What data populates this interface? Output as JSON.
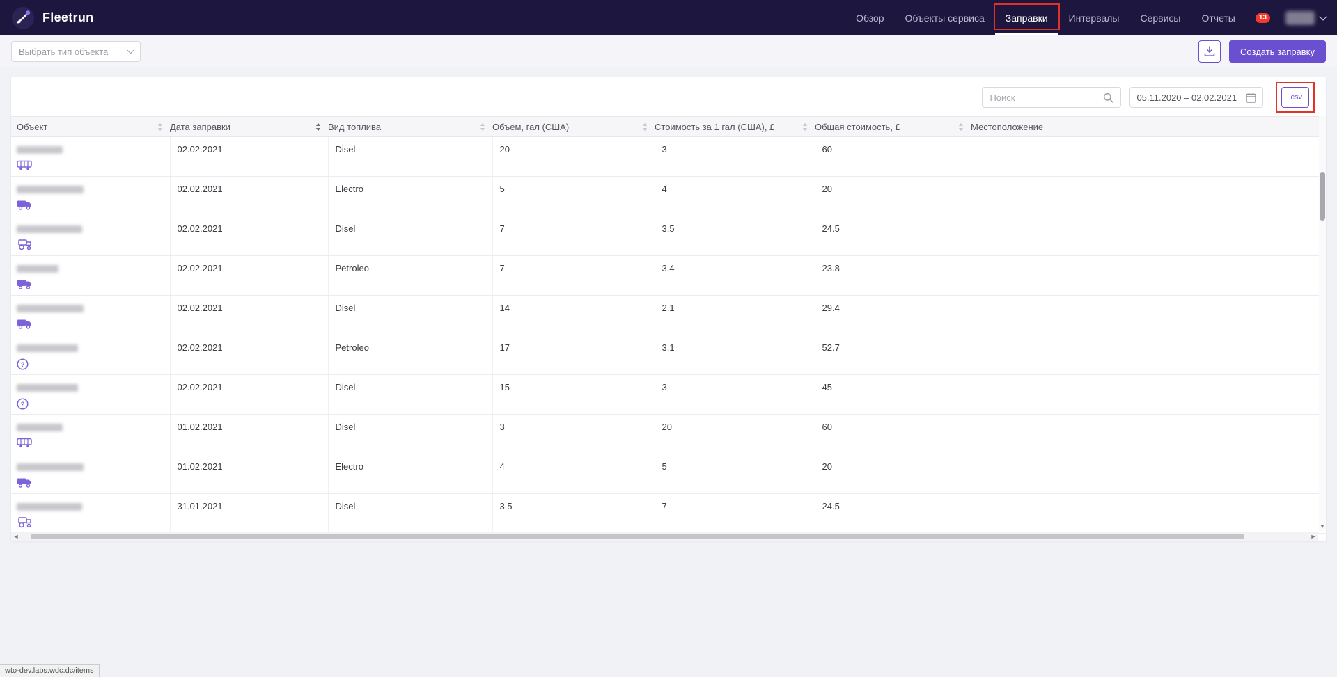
{
  "navbar": {
    "brand": "Fleetrun",
    "items": [
      {
        "label": "Обзор",
        "active": false,
        "annotated": false
      },
      {
        "label": "Объекты сервиса",
        "active": false,
        "annotated": false
      },
      {
        "label": "Заправки",
        "active": true,
        "annotated": true
      },
      {
        "label": "Интервалы",
        "active": false,
        "annotated": false
      },
      {
        "label": "Сервисы",
        "active": false,
        "annotated": false
      },
      {
        "label": "Отчеты",
        "active": false,
        "annotated": false
      }
    ],
    "notification_count": "13"
  },
  "toolbar": {
    "object_type_select": "Выбрать тип объекта",
    "download_icon": "download-icon",
    "create_button": "Создать заправку"
  },
  "filters": {
    "search_placeholder": "Поиск",
    "search_icon": "search-icon",
    "date_range": "05.11.2020 – 02.02.2021",
    "calendar_icon": "calendar-icon",
    "csv_button": ".csv"
  },
  "table": {
    "columns": [
      {
        "label": "Объект",
        "sortable": true,
        "sort_active": false
      },
      {
        "label": "Дата заправки",
        "sortable": true,
        "sort_active": true
      },
      {
        "label": "Вид топлива",
        "sortable": true,
        "sort_active": false
      },
      {
        "label": "Объем, гал (США)",
        "sortable": true,
        "sort_active": false
      },
      {
        "label": "Стоимость за 1 гал (США), £",
        "sortable": true,
        "sort_active": false
      },
      {
        "label": "Общая стоимость, £",
        "sortable": true,
        "sort_active": false
      },
      {
        "label": "Местоположение",
        "sortable": false,
        "sort_active": false
      }
    ],
    "rows": [
      {
        "object_icon": "bus",
        "name_redacted": true,
        "blur_width": 66,
        "date": "02.02.2021",
        "fuel_type": "Disel",
        "volume": "20",
        "price_per_gal": "3",
        "total_cost": "60",
        "location": ""
      },
      {
        "object_icon": "truck",
        "name_redacted": true,
        "blur_width": 96,
        "date": "02.02.2021",
        "fuel_type": "Electro",
        "volume": "5",
        "price_per_gal": "4",
        "total_cost": "20",
        "location": ""
      },
      {
        "object_icon": "harvester",
        "name_redacted": true,
        "blur_width": 94,
        "date": "02.02.2021",
        "fuel_type": "Disel",
        "volume": "7",
        "price_per_gal": "3.5",
        "total_cost": "24.5",
        "location": ""
      },
      {
        "object_icon": "truck",
        "name_redacted": true,
        "blur_width": 60,
        "date": "02.02.2021",
        "fuel_type": "Petroleo",
        "volume": "7",
        "price_per_gal": "3.4",
        "total_cost": "23.8",
        "location": ""
      },
      {
        "object_icon": "truck",
        "name_redacted": true,
        "blur_width": 96,
        "date": "02.02.2021",
        "fuel_type": "Disel",
        "volume": "14",
        "price_per_gal": "2.1",
        "total_cost": "29.4",
        "location": ""
      },
      {
        "object_icon": "question",
        "name_redacted": true,
        "blur_width": 88,
        "date": "02.02.2021",
        "fuel_type": "Petroleo",
        "volume": "17",
        "price_per_gal": "3.1",
        "total_cost": "52.7",
        "location": ""
      },
      {
        "object_icon": "question",
        "name_redacted": true,
        "blur_width": 88,
        "date": "02.02.2021",
        "fuel_type": "Disel",
        "volume": "15",
        "price_per_gal": "3",
        "total_cost": "45",
        "location": ""
      },
      {
        "object_icon": "bus",
        "name_redacted": true,
        "blur_width": 66,
        "date": "01.02.2021",
        "fuel_type": "Disel",
        "volume": "3",
        "price_per_gal": "20",
        "total_cost": "60",
        "location": ""
      },
      {
        "object_icon": "truck",
        "name_redacted": true,
        "blur_width": 96,
        "date": "01.02.2021",
        "fuel_type": "Electro",
        "volume": "4",
        "price_per_gal": "5",
        "total_cost": "20",
        "location": ""
      },
      {
        "object_icon": "harvester",
        "name_redacted": true,
        "blur_width": 94,
        "date": "31.01.2021",
        "fuel_type": "Disel",
        "volume": "3.5",
        "price_per_gal": "7",
        "total_cost": "24.5",
        "location": ""
      }
    ]
  },
  "statusbar": {
    "url": "wto-dev.labs.wdc.dc/items"
  }
}
